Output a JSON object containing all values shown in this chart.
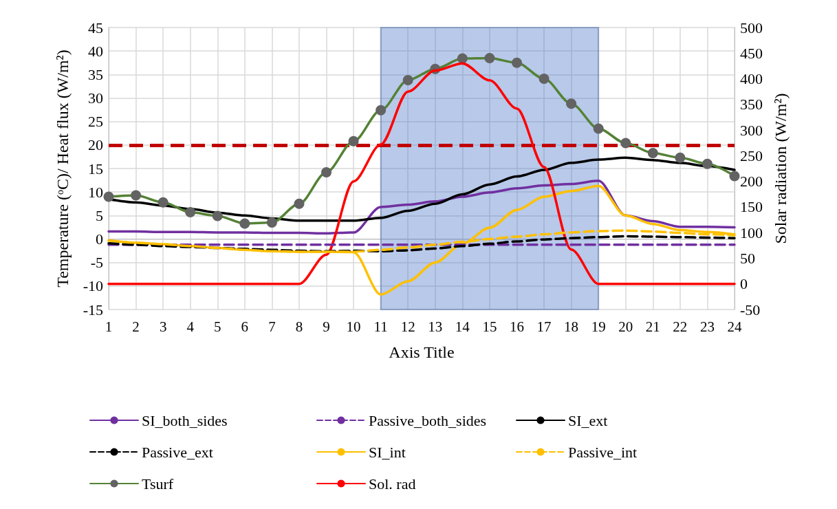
{
  "chart_data": {
    "type": "line",
    "xlabel": "Axis Title",
    "ylabel": "Temperature (ᵒC)/ Heat flux (W/m²)",
    "y2label": "Solar radiation (W/m²)",
    "x": [
      1,
      2,
      3,
      4,
      5,
      6,
      7,
      8,
      9,
      10,
      11,
      12,
      13,
      14,
      15,
      16,
      17,
      18,
      19,
      20,
      21,
      22,
      23,
      24
    ],
    "xlim": [
      1,
      24
    ],
    "xticks": [
      1,
      2,
      3,
      4,
      5,
      6,
      7,
      8,
      9,
      10,
      11,
      12,
      13,
      14,
      15,
      16,
      17,
      18,
      19,
      20,
      21,
      22,
      23,
      24
    ],
    "series": [
      {
        "name": "SI_both_sides",
        "color": "#7030a0",
        "line_style": "solid",
        "values": [
          1.6,
          1.6,
          1.5,
          1.5,
          1.4,
          1.4,
          1.3,
          1.3,
          1.2,
          1.4,
          6.8,
          7.3,
          8,
          9,
          9.9,
          10.8,
          11.4,
          11.7,
          12.4,
          5,
          3.8,
          2.6,
          2.6,
          2.5
        ]
      },
      {
        "name": "Passive_both_sides",
        "color": "#7030a0",
        "line_style": "dashed",
        "values": [
          -1.2,
          -1.2,
          -1.2,
          -1.2,
          -1.2,
          -1.2,
          -1.2,
          -1.2,
          -1.2,
          -1.2,
          -1.2,
          -1.2,
          -1.2,
          -1.2,
          -1.2,
          -1.2,
          -1.2,
          -1.2,
          -1.2,
          -1.2,
          -1.2,
          -1.2,
          -1.2,
          -1.2
        ]
      },
      {
        "name": "SI_ext",
        "color": "#000000",
        "line_style": "solid",
        "values": [
          8.5,
          7.8,
          7.1,
          6.4,
          5.6,
          5,
          4.4,
          3.9,
          3.9,
          3.9,
          4.5,
          6,
          7.5,
          9.5,
          11.6,
          13.3,
          14.7,
          16.2,
          16.9,
          17.3,
          16.8,
          16.2,
          15.5,
          14.7
        ]
      },
      {
        "name": "Passive_ext",
        "color": "#000000",
        "line_style": "dashed",
        "values": [
          -0.9,
          -1.2,
          -1.5,
          -1.7,
          -1.9,
          -2.1,
          -2.3,
          -2.5,
          -2.6,
          -2.5,
          -2.6,
          -2.4,
          -2,
          -1.5,
          -1,
          -0.5,
          -0.1,
          0.2,
          0.4,
          0.6,
          0.5,
          0.4,
          0.3,
          0.2
        ]
      },
      {
        "name": "SI_int",
        "color": "#ffc000",
        "line_style": "solid",
        "values": [
          -0.3,
          -0.8,
          -1.1,
          -1.5,
          -1.9,
          -2.3,
          -2.6,
          -2.7,
          -2.7,
          -2.8,
          -11.8,
          -9,
          -5,
          -1,
          2.4,
          6.2,
          9,
          10.2,
          11.3,
          5,
          3.2,
          1.9,
          1.5,
          1
        ]
      },
      {
        "name": "Passive_int",
        "color": "#ffc000",
        "line_style": "dashed",
        "values": [
          -0.3,
          -0.8,
          -1.1,
          -1.5,
          -1.9,
          -2.3,
          -2.6,
          -2.7,
          -2.7,
          -2.7,
          -2.3,
          -1.8,
          -1.2,
          -0.6,
          0,
          0.5,
          1,
          1.4,
          1.7,
          1.8,
          1.6,
          1.3,
          1,
          0.8
        ]
      },
      {
        "name": "Tsurf",
        "color": "#548235",
        "line_style": "solid",
        "marker": "circle",
        "values": [
          9,
          9.3,
          7.8,
          5.7,
          4.9,
          3.3,
          3.5,
          7.5,
          14.2,
          20.8,
          27.4,
          33.8,
          36.2,
          38.4,
          38.5,
          37.5,
          34.1,
          28.8,
          23.5,
          20.4,
          18.3,
          17.3,
          16,
          13.4
        ]
      },
      {
        "name": "Sol. rad",
        "color": "#ff0000",
        "line_style": "solid",
        "axis": "y2",
        "values": [
          0,
          0,
          0,
          0,
          0,
          0,
          0,
          0,
          57,
          200,
          272,
          375,
          416,
          430,
          397,
          342,
          228,
          67,
          0,
          0,
          0,
          0,
          0,
          0
        ]
      }
    ],
    "ylim": [
      -15,
      45
    ],
    "yticks": [
      -15,
      -10,
      -5,
      0,
      5,
      10,
      15,
      20,
      25,
      30,
      35,
      40,
      45
    ],
    "y2lim": [
      -50,
      500
    ],
    "y2ticks": [
      -50,
      0,
      50,
      100,
      150,
      200,
      250,
      300,
      350,
      400,
      450,
      500
    ],
    "ref_lines": [
      {
        "axis": "y",
        "value": 20,
        "color": "#c00000",
        "line_style": "dashed"
      }
    ],
    "bands": [
      {
        "axis": "x",
        "from": 11,
        "to": 19,
        "color": "#4472c4"
      }
    ],
    "grid": true,
    "legend": "bottom",
    "marker": "none"
  }
}
